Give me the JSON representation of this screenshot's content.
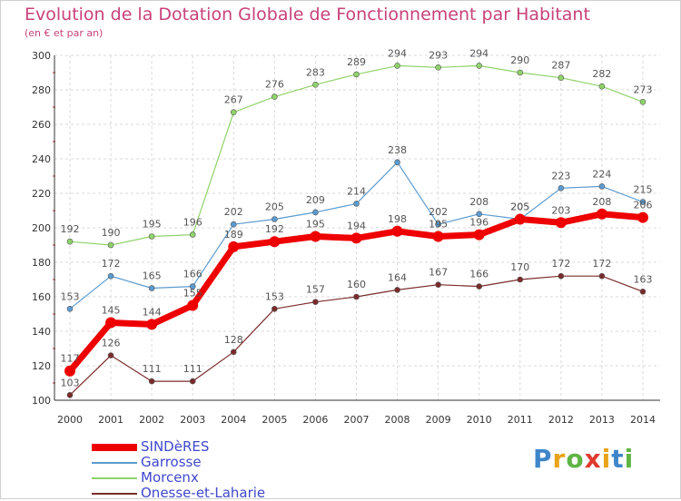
{
  "chart_data": {
    "type": "line",
    "title": "Evolution de la Dotation Globale de Fonctionnement par Habitant",
    "subtitle": "(en € et par an)",
    "categories": [
      "2000",
      "2001",
      "2002",
      "2003",
      "2004",
      "2005",
      "2006",
      "2007",
      "2008",
      "2009",
      "2010",
      "2011",
      "2012",
      "2013",
      "2014"
    ],
    "ylim": [
      100,
      300
    ],
    "yticks": [
      100,
      120,
      140,
      160,
      180,
      200,
      220,
      240,
      260,
      280,
      300
    ],
    "grid": true,
    "legend_position": "bottom-left",
    "series": [
      {
        "name": "SINDèRES",
        "color": "#ee0000",
        "values": [
          117,
          145,
          144,
          155,
          189,
          192,
          195,
          194,
          198,
          195,
          196,
          205,
          203,
          208,
          206
        ]
      },
      {
        "name": "Garrosse",
        "color": "#5b9bd0",
        "values": [
          153,
          172,
          165,
          166,
          202,
          205,
          209,
          214,
          238,
          202,
          208,
          205,
          223,
          224,
          215
        ]
      },
      {
        "name": "Morcenx",
        "color": "#8fd36a",
        "values": [
          192,
          190,
          195,
          196,
          267,
          276,
          283,
          289,
          294,
          293,
          294,
          290,
          287,
          282,
          273
        ]
      },
      {
        "name": "Onesse-et-Laharie",
        "color": "#7b2b2b",
        "values": [
          103,
          126,
          111,
          111,
          128,
          153,
          157,
          160,
          164,
          167,
          166,
          170,
          172,
          172,
          163
        ]
      }
    ]
  },
  "logo": {
    "letters": [
      {
        "ch": "P",
        "color": "#3f86c9"
      },
      {
        "ch": "r",
        "color": "#e8a317"
      },
      {
        "ch": "o",
        "color": "#5fb544"
      },
      {
        "ch": "x",
        "color": "#e03a2f"
      },
      {
        "ch": "i",
        "color": "#e8a317"
      },
      {
        "ch": "t",
        "color": "#3f86c9"
      },
      {
        "ch": "i",
        "color": "#5fb544"
      }
    ]
  }
}
